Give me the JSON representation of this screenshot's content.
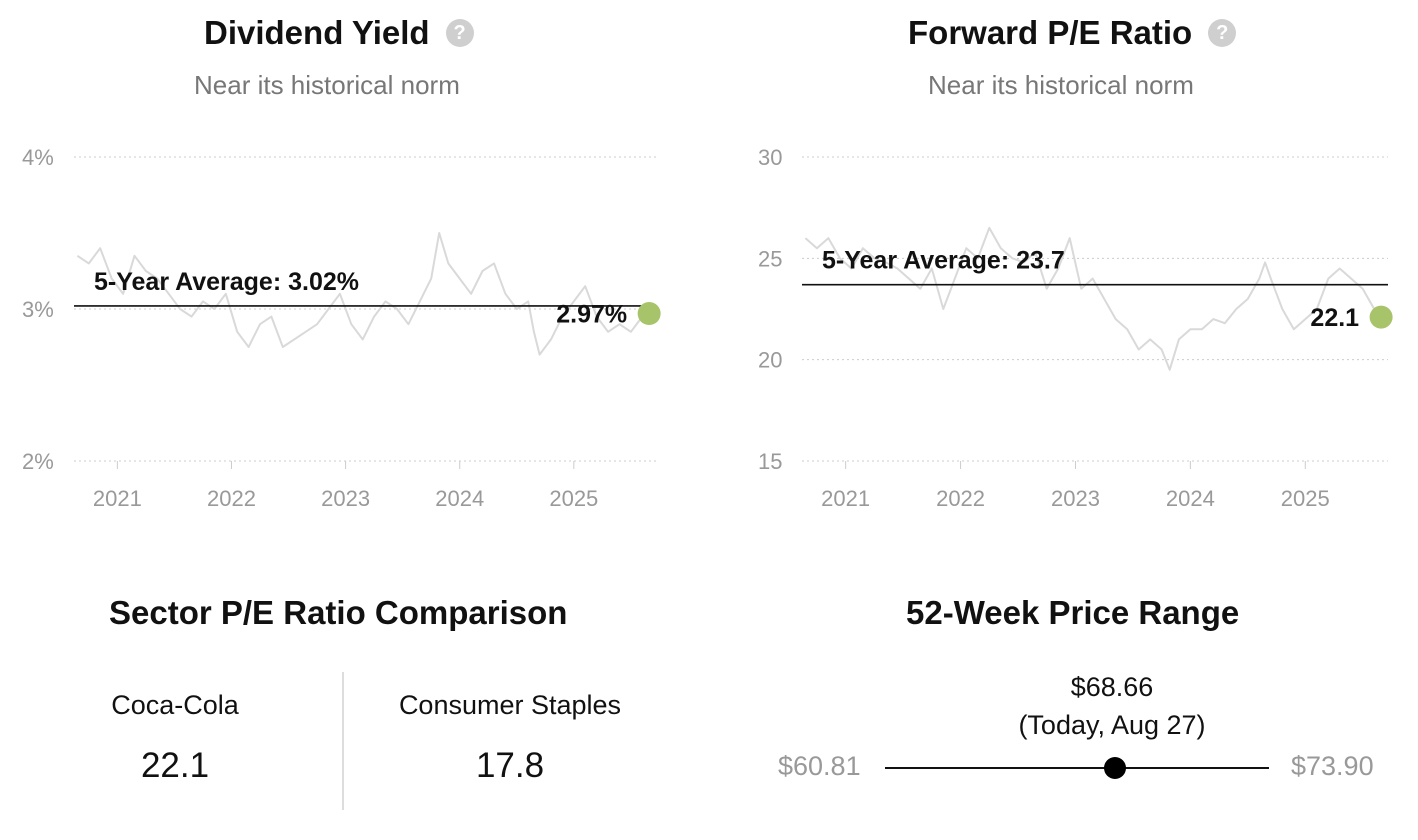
{
  "dividend": {
    "title": "Dividend Yield",
    "subtitle": "Near its historical norm",
    "avg_label": "5-Year Average: 3.02%",
    "current_label": "2.97%"
  },
  "pe": {
    "title": "Forward P/E Ratio",
    "subtitle": "Near its historical norm",
    "avg_label": "5-Year Average: 23.7",
    "current_label": "22.1"
  },
  "sector": {
    "title": "Sector P/E Ratio Comparison",
    "items": [
      {
        "name": "Coca-Cola",
        "value": "22.1"
      },
      {
        "name": "Consumer Staples",
        "value": "17.8"
      }
    ]
  },
  "price_range": {
    "title": "52-Week Price Range",
    "current": "$68.66",
    "current_note": "(Today, Aug 27)",
    "low": "$60.81",
    "high": "$73.90",
    "low_value": 60.81,
    "high_value": 73.9,
    "current_value": 68.66
  },
  "colors": {
    "line": "#d9d9d9",
    "current_dot": "#a7c46a",
    "grid": "#cccccc"
  },
  "chart_data": [
    {
      "type": "line",
      "title": "Dividend Yield",
      "subtitle": "Near its historical norm",
      "x_ticks": [
        "2021",
        "2022",
        "2023",
        "2024",
        "2025"
      ],
      "x_tick_values": [
        2021.0,
        2022.0,
        2023.0,
        2024.0,
        2025.0
      ],
      "y_ticks": [
        "2%",
        "3%",
        "4%"
      ],
      "y_tick_values": [
        2,
        3,
        4
      ],
      "xlim": [
        2020.62,
        2025.72
      ],
      "ylim": [
        2,
        4
      ],
      "grid": true,
      "average": 3.02,
      "average_label": "5-Year Average: 3.02%",
      "current": {
        "x": 2025.66,
        "y": 2.97,
        "label": "2.97%"
      },
      "series": [
        {
          "x": [
            2020.65,
            2020.75,
            2020.85,
            2020.95,
            2021.05,
            2021.15,
            2021.25,
            2021.35,
            2021.45,
            2021.55,
            2021.65,
            2021.75,
            2021.85,
            2021.95,
            2022.05,
            2022.15,
            2022.25,
            2022.35,
            2022.45,
            2022.55,
            2022.65,
            2022.75,
            2022.85,
            2022.95,
            2023.05,
            2023.15,
            2023.25,
            2023.35,
            2023.45,
            2023.55,
            2023.65,
            2023.75,
            2023.82,
            2023.9,
            2024.0,
            2024.1,
            2024.2,
            2024.3,
            2024.4,
            2024.5,
            2024.6,
            2024.65,
            2024.7,
            2024.8,
            2024.9,
            2025.0,
            2025.1,
            2025.2,
            2025.3,
            2025.4,
            2025.5,
            2025.6,
            2025.66
          ],
          "y": [
            3.35,
            3.3,
            3.4,
            3.2,
            3.1,
            3.35,
            3.25,
            3.2,
            3.1,
            3.0,
            2.95,
            3.05,
            3.0,
            3.1,
            2.85,
            2.75,
            2.9,
            2.95,
            2.75,
            2.8,
            2.85,
            2.9,
            3.0,
            3.1,
            2.9,
            2.8,
            2.95,
            3.05,
            3.0,
            2.9,
            3.05,
            3.2,
            3.5,
            3.3,
            3.2,
            3.1,
            3.25,
            3.3,
            3.1,
            3.0,
            3.05,
            2.85,
            2.7,
            2.8,
            2.95,
            3.05,
            3.15,
            2.95,
            2.85,
            2.9,
            2.85,
            2.95,
            2.97
          ]
        }
      ]
    },
    {
      "type": "line",
      "title": "Forward P/E Ratio",
      "subtitle": "Near its historical norm",
      "x_ticks": [
        "2021",
        "2022",
        "2023",
        "2024",
        "2025"
      ],
      "x_tick_values": [
        2021.0,
        2022.0,
        2023.0,
        2024.0,
        2025.0
      ],
      "y_ticks": [
        "15",
        "20",
        "25",
        "30"
      ],
      "y_tick_values": [
        15,
        20,
        25,
        30
      ],
      "xlim": [
        2020.62,
        2025.72
      ],
      "ylim": [
        15,
        30
      ],
      "grid": true,
      "average": 23.7,
      "average_label": "5-Year Average: 23.7",
      "current": {
        "x": 2025.66,
        "y": 22.1,
        "label": "22.1"
      },
      "series": [
        {
          "x": [
            2020.65,
            2020.75,
            2020.85,
            2020.95,
            2021.05,
            2021.15,
            2021.25,
            2021.35,
            2021.45,
            2021.55,
            2021.65,
            2021.75,
            2021.85,
            2021.95,
            2022.05,
            2022.15,
            2022.25,
            2022.35,
            2022.45,
            2022.55,
            2022.65,
            2022.75,
            2022.85,
            2022.95,
            2023.05,
            2023.15,
            2023.25,
            2023.35,
            2023.45,
            2023.55,
            2023.65,
            2023.75,
            2023.82,
            2023.9,
            2024.0,
            2024.1,
            2024.2,
            2024.3,
            2024.4,
            2024.5,
            2024.6,
            2024.65,
            2024.7,
            2024.8,
            2024.9,
            2025.0,
            2025.1,
            2025.2,
            2025.3,
            2025.4,
            2025.5,
            2025.6,
            2025.66
          ],
          "y": [
            26.0,
            25.5,
            26.0,
            25.0,
            24.5,
            25.5,
            25.0,
            24.8,
            24.5,
            24.0,
            23.5,
            24.5,
            22.5,
            24.0,
            25.5,
            25.0,
            26.5,
            25.5,
            25.0,
            24.8,
            25.3,
            23.5,
            24.5,
            26.0,
            23.5,
            24.0,
            23.0,
            22.0,
            21.5,
            20.5,
            21.0,
            20.5,
            19.5,
            21.0,
            21.5,
            21.5,
            22.0,
            21.8,
            22.5,
            23.0,
            24.0,
            24.8,
            24.0,
            22.5,
            21.5,
            22.0,
            22.5,
            24.0,
            24.5,
            24.0,
            23.5,
            22.5,
            22.1
          ]
        }
      ]
    }
  ]
}
